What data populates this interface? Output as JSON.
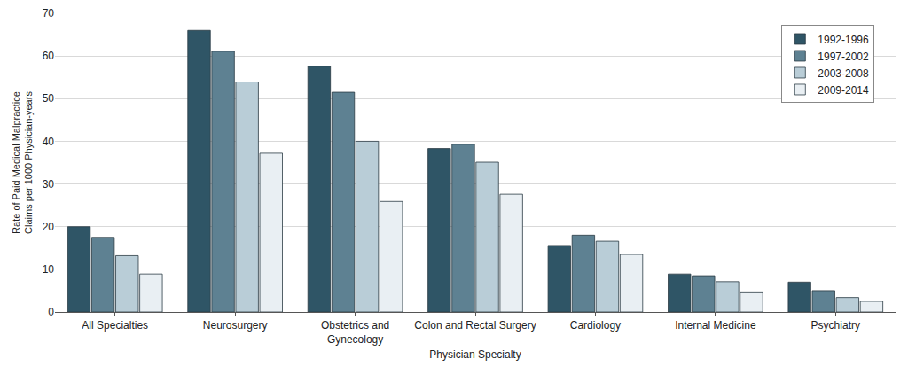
{
  "chart_data": {
    "type": "bar",
    "x_label": "Physician Specialty",
    "y_label": "Rate of Paid Medical Malpractice Claims per 1000 Physician-years",
    "categories": [
      "All Specialties",
      "Neurosurgery",
      "Obstetrics and Gynecology",
      "Colon and Rectal Surgery",
      "Cardiology",
      "Internal Medicine",
      "Psychiatry"
    ],
    "series": [
      {
        "name": "1992-1996",
        "color": "#2f5566",
        "values": [
          20.0,
          66.0,
          57.6,
          38.3,
          15.6,
          8.9,
          7.0
        ]
      },
      {
        "name": "1997-2002",
        "color": "#5e8192",
        "values": [
          17.5,
          61.1,
          51.5,
          39.3,
          18.0,
          8.5,
          5.0
        ]
      },
      {
        "name": "2003-2008",
        "color": "#b9cdd7",
        "values": [
          13.2,
          53.9,
          40.0,
          35.1,
          16.6,
          7.1,
          3.4
        ]
      },
      {
        "name": "2009-2014",
        "color": "#e9eff3",
        "values": [
          8.9,
          37.2,
          25.9,
          27.6,
          13.5,
          4.7,
          2.5
        ]
      }
    ],
    "ylim": [
      0,
      70
    ],
    "yticks": [
      0,
      10,
      20,
      30,
      40,
      50,
      60,
      70
    ],
    "grid": true,
    "legend": "upper right"
  }
}
